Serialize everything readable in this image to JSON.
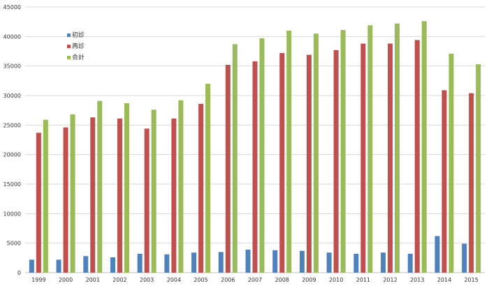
{
  "chart_data": {
    "type": "bar",
    "title": "",
    "xlabel": "",
    "ylabel": "",
    "ylim": [
      0,
      45000
    ],
    "yticks": [
      0,
      5000,
      10000,
      15000,
      20000,
      25000,
      30000,
      35000,
      40000,
      45000
    ],
    "grid": true,
    "legend_position": "top-left",
    "categories": [
      "1999",
      "2000",
      "2001",
      "2002",
      "2003",
      "2004",
      "2005",
      "2006",
      "2007",
      "2008",
      "2009",
      "2010",
      "2011",
      "2012",
      "2013",
      "2014",
      "2015"
    ],
    "series": [
      {
        "name": "初診",
        "color": "#4f81bd",
        "values": [
          2200,
          2200,
          2800,
          2600,
          3200,
          3100,
          3400,
          3500,
          3900,
          3800,
          3700,
          3400,
          3200,
          3400,
          3200,
          6200,
          4900
        ]
      },
      {
        "name": "再診",
        "color": "#c0504d",
        "values": [
          23700,
          24600,
          26300,
          26100,
          24400,
          26100,
          28600,
          35200,
          35800,
          37200,
          36900,
          37700,
          38800,
          38800,
          39400,
          30900,
          30400
        ]
      },
      {
        "name": "合計",
        "color": "#9bbb59",
        "values": [
          25900,
          26800,
          29100,
          28700,
          27600,
          29200,
          32000,
          38700,
          39700,
          41000,
          40500,
          41100,
          41900,
          42200,
          42600,
          37100,
          35300
        ]
      }
    ]
  },
  "colors": {
    "grid": "#d9d9d9",
    "axis": "#bfbfbf",
    "text": "#333333"
  }
}
